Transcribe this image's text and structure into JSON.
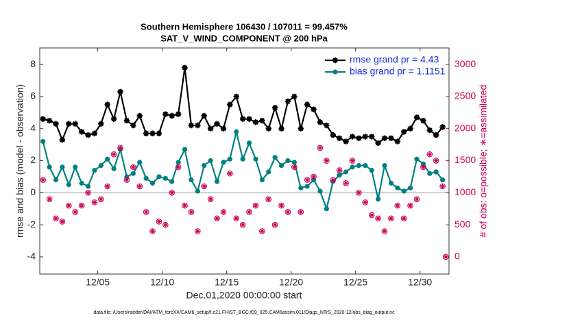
{
  "chart_data": {
    "type": "line",
    "title": "Southern Hemisphere 106430 / 107011 = 99.457%",
    "subtitle": "SAT_V_WIND_COMPONENT @ 200 hPa",
    "x_label": "Dec.01,2020 00:00:00 start",
    "y_label": "rmse and bias (model - observation)",
    "y2_label": "# of obs: o=possible; ∗=assimilated",
    "footnote": "data file: /Users/raeder/DAI/ATM_forcXX/CAM6_setup/f.e21.FHIST_BGC.f09_025.CAM6assim.011/Diags_NTrS_2020-12/obs_diag_output.nc",
    "xlim": [
      -0.5,
      31.25
    ],
    "xticks": [
      {
        "value": 4,
        "label": "12/05"
      },
      {
        "value": 9,
        "label": "12/10"
      },
      {
        "value": 14,
        "label": "12/15"
      },
      {
        "value": 19,
        "label": "12/20"
      },
      {
        "value": 24,
        "label": "12/25"
      },
      {
        "value": 29,
        "label": "12/30"
      }
    ],
    "ylim": [
      -5.07,
      9.03
    ],
    "yticks": [
      -4,
      -2,
      0,
      2,
      4,
      6,
      8
    ],
    "y2lim": [
      -267.5,
      3257.5
    ],
    "y2ticks": [
      0,
      500,
      1000,
      1500,
      2000,
      2500,
      3000
    ],
    "reference_line": 0,
    "legend": "upper right",
    "x": [
      -0.25,
      0.25,
      0.75,
      1.25,
      1.75,
      2.25,
      2.75,
      3.25,
      3.75,
      4.25,
      4.75,
      5.25,
      5.75,
      6.25,
      6.75,
      7.25,
      7.75,
      8.25,
      8.75,
      9.25,
      9.75,
      10.25,
      10.75,
      11.25,
      11.75,
      12.25,
      12.75,
      13.25,
      13.75,
      14.25,
      14.75,
      15.25,
      15.75,
      16.25,
      16.75,
      17.25,
      17.75,
      18.25,
      18.75,
      19.25,
      19.75,
      20.25,
      20.75,
      21.25,
      21.75,
      22.25,
      22.75,
      23.25,
      23.75,
      24.25,
      24.75,
      25.25,
      25.75,
      26.25,
      26.75,
      27.25,
      27.75,
      28.25,
      28.75,
      29.25,
      29.75,
      30.25,
      30.75,
      31.0
    ],
    "series": [
      {
        "name": "rmse grand pr = 4.43",
        "color": "#000000",
        "marker": "star",
        "values": [
          4.6,
          4.5,
          4.3,
          3.3,
          4.3,
          4.3,
          3.8,
          3.6,
          3.7,
          4.3,
          5.5,
          4.6,
          6.3,
          4.5,
          4.2,
          4.8,
          3.7,
          3.7,
          3.7,
          4.9,
          4.8,
          4.9,
          7.8,
          4.2,
          4.2,
          4.8,
          4.0,
          4.3,
          4.0,
          5.5,
          6.0,
          4.6,
          4.6,
          4.4,
          4.5,
          4.0,
          5.3,
          4.0,
          5.7,
          6.0,
          4.0,
          5.5,
          5.2,
          4.4,
          4.2,
          3.6,
          3.4,
          3.2,
          3.5,
          3.4,
          3.5,
          3.5,
          3.1,
          3.4,
          3.4,
          3.2,
          3.8,
          4.0,
          4.7,
          4.5,
          3.9,
          3.6,
          4.1,
          null
        ]
      },
      {
        "name": "bias grand pr = 1.1151",
        "color": "#008080",
        "marker": "circle",
        "values": [
          3.2,
          1.6,
          0.8,
          1.6,
          0.5,
          1.6,
          0.6,
          0.4,
          1.4,
          1.7,
          2.1,
          1.5,
          2.7,
          1.0,
          1.2,
          1.9,
          0.9,
          0.6,
          1.0,
          0.9,
          0.7,
          1.9,
          2.7,
          0.8,
          0.1,
          1.7,
          2.0,
          0.7,
          1.9,
          2.1,
          3.8,
          2.1,
          3.1,
          2.1,
          0.8,
          1.3,
          2.2,
          1.7,
          2.0,
          1.9,
          0.3,
          0.4,
          0.8,
          0.1,
          -1.0,
          0.7,
          1.1,
          1.3,
          1.6,
          1.7,
          1.7,
          1.4,
          -0.4,
          1.7,
          0.6,
          0.3,
          0.1,
          0.3,
          2.1,
          1.8,
          1.2,
          1.3,
          0.8,
          null
        ]
      },
      {
        "name": "possible",
        "color": "#cc0055",
        "marker": "open-circle",
        "axis": "y2",
        "values": [
          1200,
          900,
          600,
          550,
          800,
          700,
          800,
          1000,
          850,
          900,
          1100,
          1600,
          1700,
          1200,
          1400,
          1100,
          700,
          400,
          550,
          500,
          1000,
          1400,
          800,
          700,
          400,
          1100,
          900,
          600,
          700,
          1300,
          600,
          500,
          700,
          800,
          400,
          900,
          500,
          800,
          700,
          1400,
          700,
          1200,
          1250,
          1700,
          1500,
          1200,
          1350,
          1150,
          1500,
          1000,
          850,
          650,
          600,
          400,
          600,
          800,
          600,
          800,
          900,
          1400,
          1600,
          1500,
          1100,
          0
        ]
      },
      {
        "name": "assimilated",
        "color": "#cc0055",
        "marker": "star",
        "axis": "y2",
        "values": [
          1200,
          900,
          600,
          550,
          800,
          700,
          800,
          1000,
          850,
          900,
          1100,
          1600,
          1700,
          1200,
          1400,
          1100,
          700,
          400,
          550,
          500,
          1000,
          1400,
          800,
          700,
          400,
          1100,
          900,
          600,
          700,
          1300,
          600,
          500,
          700,
          800,
          400,
          900,
          500,
          800,
          700,
          1400,
          700,
          1200,
          1250,
          1700,
          1500,
          1200,
          1350,
          1150,
          1500,
          1000,
          850,
          650,
          600,
          400,
          600,
          800,
          600,
          800,
          900,
          1400,
          1600,
          1500,
          1100,
          0
        ]
      }
    ]
  }
}
